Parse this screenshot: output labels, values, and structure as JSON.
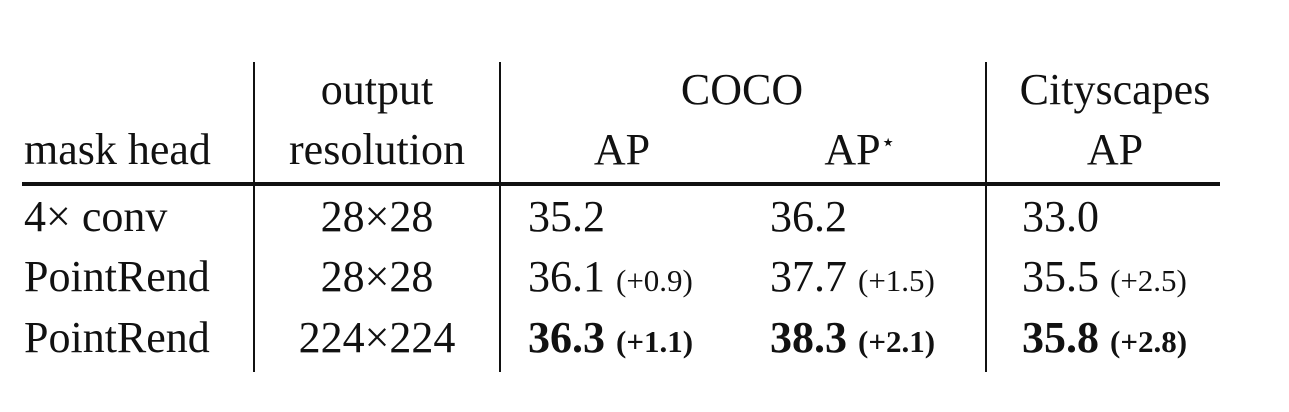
{
  "table": {
    "group_header": {
      "resolution": "output",
      "coco": "COCO",
      "cityscapes": "Cityscapes"
    },
    "columns": [
      "mask head",
      "resolution",
      "AP",
      {
        "text": "AP",
        "sup": "⋆"
      },
      "AP"
    ],
    "rows": [
      {
        "mask_head": "4× conv",
        "resolution": "28×28",
        "coco_ap": {
          "value": "35.2"
        },
        "coco_ap_star": {
          "value": "36.2"
        },
        "cityscapes_ap": {
          "value": "33.0"
        }
      },
      {
        "mask_head": "PointRend",
        "resolution": "28×28",
        "coco_ap": {
          "value": "36.1",
          "delta": "(+0.9)"
        },
        "coco_ap_star": {
          "value": "37.7",
          "delta": "(+1.5)"
        },
        "cityscapes_ap": {
          "value": "35.5",
          "delta": "(+2.5)"
        }
      },
      {
        "mask_head": "PointRend",
        "resolution": "224×224",
        "bold": true,
        "coco_ap": {
          "value": "36.3",
          "delta": "(+1.1)"
        },
        "coco_ap_star": {
          "value": "38.3",
          "delta": "(+2.1)"
        },
        "cityscapes_ap": {
          "value": "35.8",
          "delta": "(+2.8)"
        }
      }
    ]
  }
}
